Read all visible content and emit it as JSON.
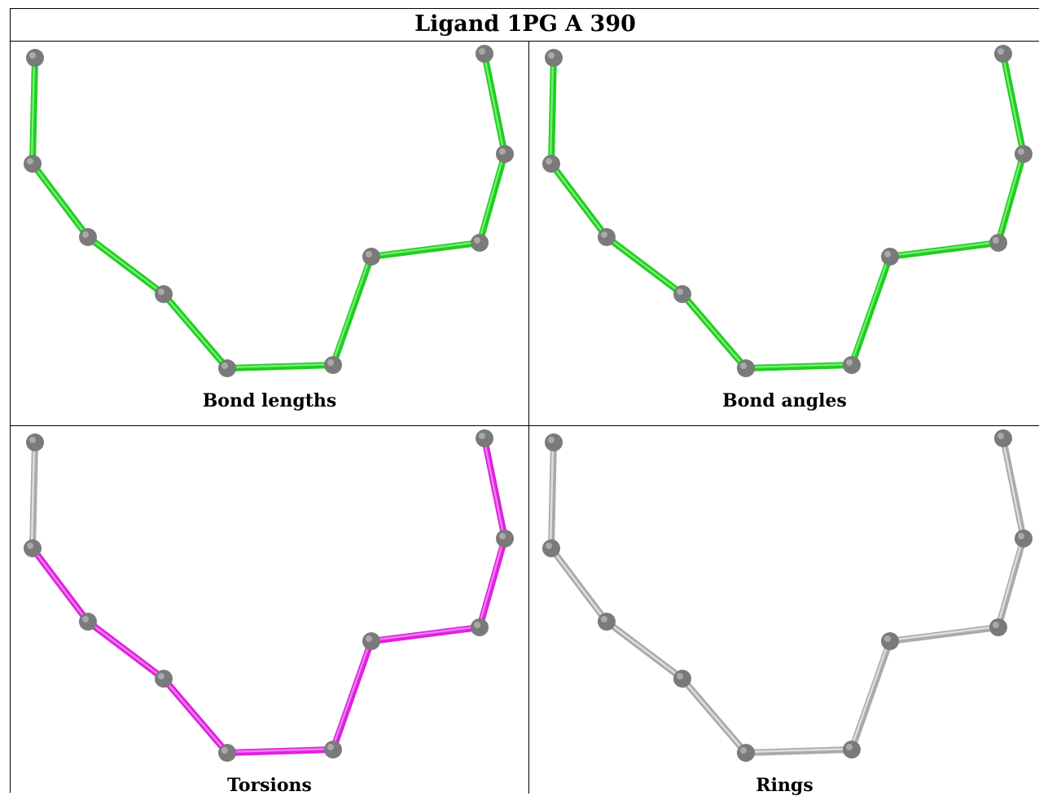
{
  "title": "Ligand 1PG A 390",
  "panels": [
    {
      "id": "bond-lengths",
      "caption": "Bond lengths",
      "bond_color": "#22cc22",
      "bond_highlight": "#6ef06e"
    },
    {
      "id": "bond-angles",
      "caption": "Bond angles",
      "bond_color": "#22cc22",
      "bond_highlight": "#6ef06e"
    },
    {
      "id": "torsions",
      "caption": "Torsions",
      "bond_color": "#dd22dd",
      "bond_highlight": "#f27af2",
      "gray_bonds": [
        0,
        9
      ]
    },
    {
      "id": "rings",
      "caption": "Rings",
      "bond_color": "#aaaaaa",
      "bond_highlight": "#dedede"
    }
  ],
  "atom_color": "#7a7a7a"
}
